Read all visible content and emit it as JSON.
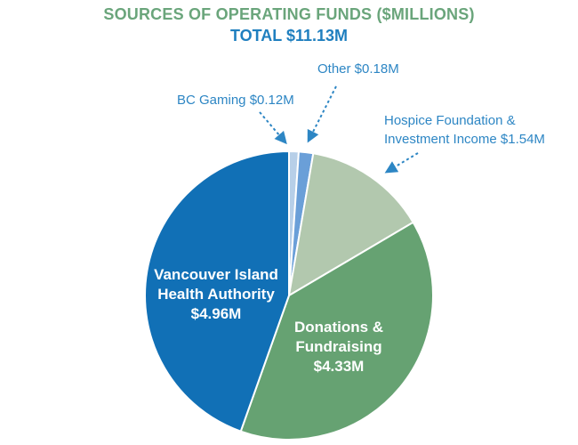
{
  "header": {
    "title": "SOURCES OF OPERATING FUNDS ($MILLIONS)",
    "subtitle": "TOTAL $11.13M"
  },
  "chart_data": {
    "type": "pie",
    "title": "SOURCES OF OPERATING FUNDS ($MILLIONS)",
    "subtitle": "TOTAL $11.13M",
    "total": 11.13,
    "unit": "$M",
    "start_angle_deg": 0,
    "direction": "clockwise",
    "slices": [
      {
        "name": "BC Gaming",
        "value": 0.12,
        "color": "#b7cfe8",
        "label_lines": [
          "BC Gaming $0.12M"
        ],
        "label_style": "callout"
      },
      {
        "name": "Other",
        "value": 0.18,
        "color": "#6a9fd8",
        "label_lines": [
          "Other $0.18M"
        ],
        "label_style": "callout"
      },
      {
        "name": "Hospice Foundation & Investment Income",
        "value": 1.54,
        "color": "#b2c8ae",
        "label_lines": [
          "Hospice Foundation &",
          "Investment Income $1.54M"
        ],
        "label_style": "callout"
      },
      {
        "name": "Donations & Fundraising",
        "value": 4.33,
        "color": "#66a272",
        "label_lines": [
          "Donations &",
          "Fundraising",
          "$4.33M"
        ],
        "label_style": "inside"
      },
      {
        "name": "Vancouver Island Health Authority",
        "value": 4.96,
        "color": "#1170b6",
        "label_lines": [
          "Vancouver Island",
          "Health Authority",
          "$4.96M"
        ],
        "label_style": "inside"
      }
    ]
  }
}
